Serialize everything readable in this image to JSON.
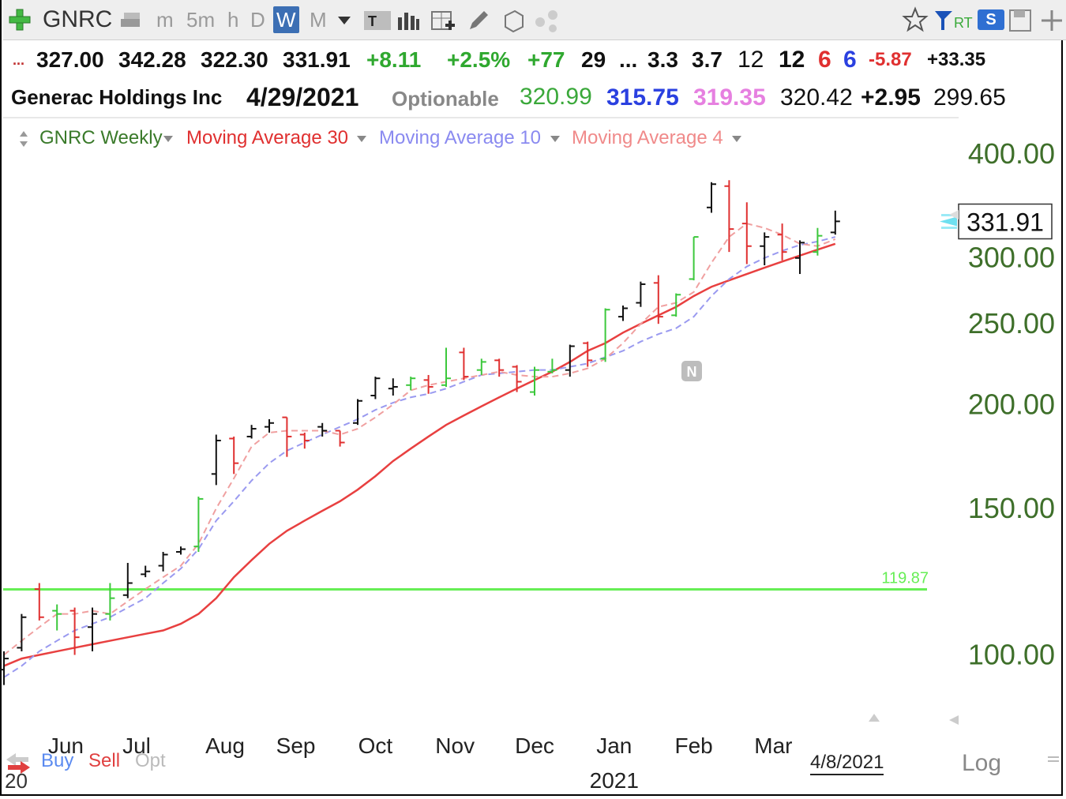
{
  "toolbar": {
    "symbol": "GNRC",
    "timeframes": [
      "m",
      "5m",
      "h",
      "D",
      "W",
      "M"
    ],
    "active_timeframe": "W",
    "rt_label": "RT",
    "s_label": "S"
  },
  "quote": {
    "ellipsis": "...",
    "open": "327.00",
    "high": "342.28",
    "low": "322.30",
    "close": "331.91",
    "change": "+8.11",
    "change_pct": "+2.5%",
    "val_77": "+77",
    "val_29": "29",
    "ellipsis2": "...",
    "val_3_3": "3.3",
    "val_3_7": "3.7",
    "val_12a": "12",
    "val_12b": "12",
    "val_6a": "6",
    "val_6b": "6",
    "val_neg": "-5.87",
    "val_pos": "+33.35"
  },
  "quote2": {
    "company": "Generac Holdings Inc",
    "date": "4/29/2021",
    "optionable": "Optionable",
    "v1": "320.99",
    "v2": "315.75",
    "v3": "319.35",
    "v4": "320.42",
    "v5": "+2.95",
    "v6": "299.65"
  },
  "legend": {
    "weekly": "GNRC Weekly",
    "ma30": "Moving Average 30",
    "ma10": "Moving Average 10",
    "ma4": "Moving Average 4"
  },
  "colors": {
    "up": "#3cc83c",
    "down": "#e03030",
    "neutral": "#111111",
    "ma30": "#e84040",
    "ma10": "#9a9af0",
    "ma4": "#f0a0a0",
    "hline": "#66ee55",
    "axis_text": "#3e6f2a"
  },
  "bottom": {
    "buy": "Buy",
    "sell": "Sell",
    "opt": "Opt",
    "year_start": "20",
    "last_date": "4/8/2021",
    "log": "Log",
    "n_marker": "N"
  },
  "chart_data": {
    "type": "ohlc",
    "scale": "log",
    "ylim": [
      88,
      430
    ],
    "yticks": [
      100,
      150,
      200,
      250,
      300,
      400
    ],
    "ytick_labels": [
      "100.00",
      "150.00",
      "200.00",
      "250.00",
      "300.00",
      "400.00"
    ],
    "last_price": 331.91,
    "last_price_label": "331.91",
    "horizontal_line": {
      "value": 119.87,
      "label": "119.87"
    },
    "x_labels": [
      {
        "label": "Jun",
        "index": 3.5
      },
      {
        "label": "Jul",
        "index": 7.5
      },
      {
        "label": "Aug",
        "index": 12.5
      },
      {
        "label": "Sep",
        "index": 16.5
      },
      {
        "label": "Oct",
        "index": 21
      },
      {
        "label": "Nov",
        "index": 25.5
      },
      {
        "label": "Dec",
        "index": 30
      },
      {
        "label": "Jan",
        "index": 34.5
      },
      {
        "label": "Feb",
        "index": 39
      },
      {
        "label": "Mar",
        "index": 43.5
      }
    ],
    "year_label": {
      "label": "2021",
      "index": 34.5
    },
    "candles": [
      {
        "o": 96,
        "h": 101,
        "l": 92,
        "c": 99,
        "d": "n"
      },
      {
        "o": 102,
        "h": 112,
        "l": 101,
        "c": 111,
        "d": "n"
      },
      {
        "o": 120,
        "h": 122,
        "l": 110,
        "c": 111,
        "d": "d"
      },
      {
        "o": 113,
        "h": 115,
        "l": 107,
        "c": 112,
        "d": "u"
      },
      {
        "o": 113,
        "h": 114,
        "l": 100,
        "c": 105,
        "d": "d"
      },
      {
        "o": 108,
        "h": 114,
        "l": 101,
        "c": 112,
        "d": "n"
      },
      {
        "o": 112,
        "h": 122,
        "l": 110,
        "c": 117,
        "d": "u"
      },
      {
        "o": 118,
        "h": 129,
        "l": 117,
        "c": 122,
        "d": "n"
      },
      {
        "o": 125,
        "h": 128,
        "l": 124,
        "c": 126,
        "d": "n"
      },
      {
        "o": 128,
        "h": 133,
        "l": 126,
        "c": 132,
        "d": "n"
      },
      {
        "o": 133,
        "h": 135,
        "l": 132,
        "c": 134,
        "d": "n"
      },
      {
        "o": 135,
        "h": 155,
        "l": 133,
        "c": 154,
        "d": "u"
      },
      {
        "o": 165,
        "h": 184,
        "l": 160,
        "c": 181,
        "d": "n"
      },
      {
        "o": 182,
        "h": 183,
        "l": 165,
        "c": 170,
        "d": "d"
      },
      {
        "o": 183,
        "h": 189,
        "l": 182,
        "c": 187,
        "d": "n"
      },
      {
        "o": 188,
        "h": 192,
        "l": 185,
        "c": 190,
        "d": "n"
      },
      {
        "o": 193,
        "h": 193,
        "l": 173,
        "c": 183,
        "d": "d"
      },
      {
        "o": 184,
        "h": 185,
        "l": 177,
        "c": 181,
        "d": "d"
      },
      {
        "o": 188,
        "h": 190,
        "l": 183,
        "c": 186,
        "d": "n"
      },
      {
        "o": 186,
        "h": 186,
        "l": 178,
        "c": 180,
        "d": "d"
      },
      {
        "o": 190,
        "h": 203,
        "l": 189,
        "c": 202,
        "d": "n"
      },
      {
        "o": 205,
        "h": 216,
        "l": 203,
        "c": 215,
        "d": "n"
      },
      {
        "o": 209,
        "h": 215,
        "l": 205,
        "c": 210,
        "d": "n"
      },
      {
        "o": 211,
        "h": 216,
        "l": 208,
        "c": 215,
        "d": "u"
      },
      {
        "o": 214,
        "h": 217,
        "l": 206,
        "c": 210,
        "d": "d"
      },
      {
        "o": 211,
        "h": 234,
        "l": 210,
        "c": 215,
        "d": "u"
      },
      {
        "o": 231,
        "h": 234,
        "l": 214,
        "c": 216,
        "d": "d"
      },
      {
        "o": 220,
        "h": 227,
        "l": 217,
        "c": 225,
        "d": "u"
      },
      {
        "o": 226,
        "h": 227,
        "l": 216,
        "c": 220,
        "d": "d"
      },
      {
        "o": 222,
        "h": 223,
        "l": 207,
        "c": 213,
        "d": "d"
      },
      {
        "o": 207,
        "h": 222,
        "l": 205,
        "c": 220,
        "d": "u"
      },
      {
        "o": 219,
        "h": 227,
        "l": 218,
        "c": 220,
        "d": "u"
      },
      {
        "o": 220,
        "h": 236,
        "l": 216,
        "c": 235,
        "d": "n"
      },
      {
        "o": 237,
        "h": 238,
        "l": 222,
        "c": 226,
        "d": "d"
      },
      {
        "o": 227,
        "h": 261,
        "l": 225,
        "c": 260,
        "d": "u"
      },
      {
        "o": 255,
        "h": 263,
        "l": 252,
        "c": 261,
        "d": "n"
      },
      {
        "o": 265,
        "h": 281,
        "l": 262,
        "c": 279,
        "d": "n"
      },
      {
        "o": 280,
        "h": 286,
        "l": 250,
        "c": 255,
        "d": "d"
      },
      {
        "o": 256,
        "h": 272,
        "l": 255,
        "c": 271,
        "d": "u"
      },
      {
        "o": 283,
        "h": 318,
        "l": 282,
        "c": 318,
        "d": "u"
      },
      {
        "o": 345,
        "h": 370,
        "l": 340,
        "c": 368,
        "d": "n"
      },
      {
        "o": 366,
        "h": 372,
        "l": 305,
        "c": 325,
        "d": "d"
      },
      {
        "o": 330,
        "h": 350,
        "l": 295,
        "c": 310,
        "d": "d"
      },
      {
        "o": 310,
        "h": 322,
        "l": 294,
        "c": 318,
        "d": "n"
      },
      {
        "o": 320,
        "h": 330,
        "l": 298,
        "c": 305,
        "d": "d"
      },
      {
        "o": 300,
        "h": 315,
        "l": 287,
        "c": 313,
        "d": "n"
      },
      {
        "o": 305,
        "h": 326,
        "l": 302,
        "c": 319,
        "d": "u"
      },
      {
        "o": 322,
        "h": 342,
        "l": 320,
        "c": 332,
        "d": "n"
      }
    ],
    "ma30": [
      97,
      99,
      100,
      101,
      102,
      103,
      104,
      105,
      106,
      107,
      109,
      112,
      117,
      124,
      130,
      136,
      141,
      145,
      149,
      153,
      158,
      164,
      171,
      177,
      183,
      189,
      194,
      199,
      204,
      209,
      214,
      219,
      225,
      232,
      237,
      244,
      250,
      256,
      262,
      270,
      277,
      282,
      287,
      292,
      297,
      302,
      307,
      312
    ],
    "ma10": [
      94,
      97,
      101,
      104,
      107,
      109,
      111,
      114,
      117,
      122,
      127,
      134,
      145,
      153,
      162,
      170,
      176,
      180,
      184,
      188,
      192,
      197,
      201,
      204,
      206,
      209,
      213,
      217,
      218,
      219,
      220,
      220,
      222,
      224,
      228,
      232,
      238,
      243,
      247,
      255,
      270,
      283,
      293,
      300,
      306,
      311,
      314,
      318
    ],
    "ma4": [
      100,
      104,
      108,
      112,
      112,
      113,
      112,
      116,
      120,
      124,
      128,
      136,
      150,
      163,
      178,
      185,
      186,
      186,
      186,
      184,
      187,
      193,
      200,
      208,
      211,
      213,
      215,
      217,
      219,
      217,
      216,
      216,
      218,
      221,
      227,
      237,
      250,
      262,
      265,
      273,
      296,
      318,
      330,
      326,
      320,
      312,
      310,
      316
    ]
  }
}
